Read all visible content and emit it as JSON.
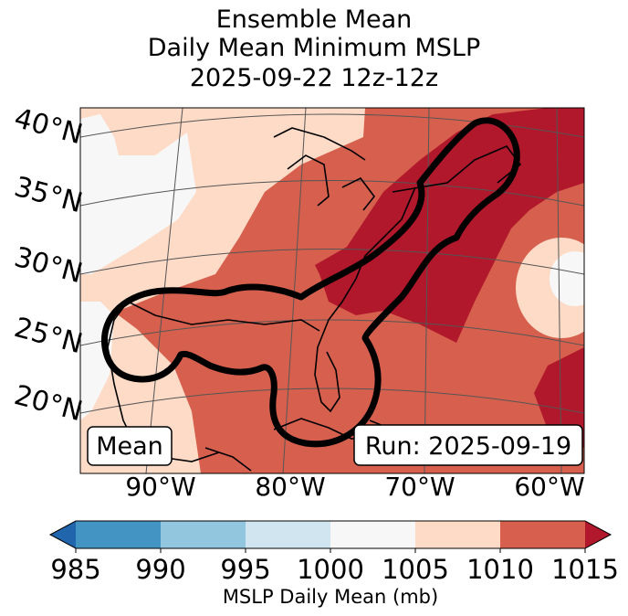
{
  "title": {
    "line1": "Ensemble Mean",
    "line2": "Daily Mean Minimum MSLP",
    "line3": "2025-09-22 12z-12z"
  },
  "map": {
    "latitude_labels": [
      "40°N",
      "35°N",
      "30°N",
      "25°N",
      "20°N"
    ],
    "longitude_labels": [
      "90°W",
      "80°W",
      "70°W",
      "60°W"
    ],
    "mean_box": "Mean",
    "run_box": "Run: 2025-09-19",
    "colors": {
      "land_line": "#000000",
      "contour": "#000000",
      "grid": "#555555"
    }
  },
  "colorbar": {
    "label": "MSLP Daily Mean (mb)",
    "ticks": [
      "985",
      "990",
      "995",
      "1000",
      "1005",
      "1010",
      "1015"
    ],
    "bins": [
      {
        "from": 985,
        "to": 990,
        "color": "#4393c3"
      },
      {
        "from": 990,
        "to": 995,
        "color": "#92c5de"
      },
      {
        "from": 995,
        "to": 1000,
        "color": "#d1e5f0"
      },
      {
        "from": 1000,
        "to": 1005,
        "color": "#f7f7f7"
      },
      {
        "from": 1005,
        "to": 1010,
        "color": "#fddbc7"
      },
      {
        "from": 1010,
        "to": 1015,
        "color": "#d6604d"
      }
    ],
    "under_color": "#2166ac",
    "over_color": "#b2182b"
  }
}
